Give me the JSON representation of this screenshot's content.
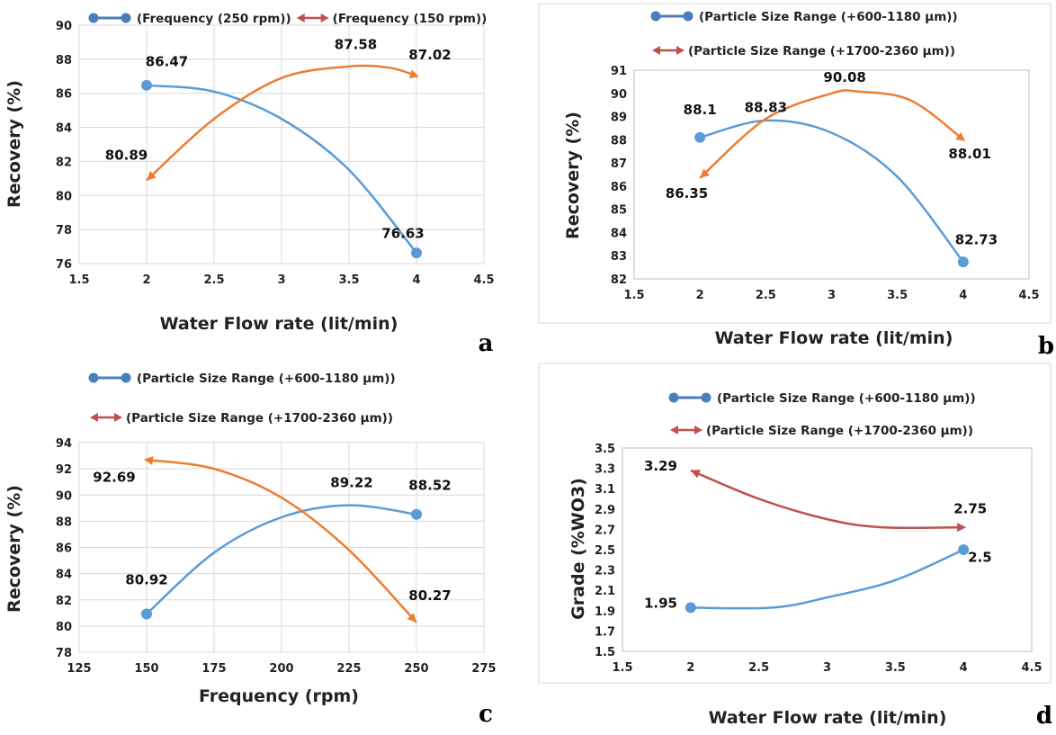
{
  "colors": {
    "blue": "#5b9bd5",
    "orange": "#ed7d31",
    "red_arrow": "#c0504d",
    "grid": "#d9d9d9",
    "frame": "#bfbfbf"
  },
  "chart_data": [
    {
      "panel": "a",
      "type": "line",
      "xlabel": "Water Flow rate (lit/min)",
      "ylabel": "Recovery (%)",
      "xlim": [
        1.5,
        4.5
      ],
      "xticks": [
        1.5,
        2,
        2.5,
        3,
        3.5,
        4,
        4.5
      ],
      "xtick_labels": [
        "1.5",
        "2",
        "2.5",
        "3",
        "3.5",
        "4",
        "4.5"
      ],
      "ylim": [
        76,
        90
      ],
      "yticks": [
        76,
        78,
        80,
        82,
        84,
        86,
        88,
        90
      ],
      "ytick_labels": [
        "76",
        "78",
        "80",
        "82",
        "84",
        "86",
        "88",
        "90"
      ],
      "grid": true,
      "legend": [
        "(Frequency (250 rpm))",
        "(Frequency (150 rpm))"
      ],
      "series": [
        {
          "name": "(Frequency (250 rpm))",
          "style": "blue-dot",
          "x": [
            2,
            4
          ],
          "y": [
            86.47,
            76.63
          ],
          "curve": [
            [
              2,
              86.47
            ],
            [
              2.5,
              86.1
            ],
            [
              3,
              84.5
            ],
            [
              3.5,
              81.5
            ],
            [
              4,
              76.63
            ]
          ],
          "labels": [
            "86.47",
            "76.63"
          ]
        },
        {
          "name": "(Frequency (150 rpm))",
          "style": "orange-arrow",
          "x": [
            2,
            4
          ],
          "y": [
            80.89,
            87.02
          ],
          "curve": [
            [
              2,
              80.89
            ],
            [
              2.5,
              84.5
            ],
            [
              3,
              86.9
            ],
            [
              3.5,
              87.58
            ],
            [
              3.8,
              87.5
            ],
            [
              4,
              87.02
            ]
          ],
          "labels": [
            "80.89",
            "87.02"
          ],
          "peak_label": "87.58"
        }
      ],
      "point_labels": [
        {
          "text": "86.47",
          "x": 2.15,
          "y": 87.6
        },
        {
          "text": "76.63",
          "x": 3.9,
          "y": 77.5
        },
        {
          "text": "80.89",
          "x": 1.85,
          "y": 82.1
        },
        {
          "text": "87.58",
          "x": 3.55,
          "y": 88.6
        },
        {
          "text": "87.02",
          "x": 4.1,
          "y": 88.0
        }
      ]
    },
    {
      "panel": "b",
      "type": "line",
      "xlabel": "Water Flow rate (lit/min)",
      "ylabel": "Recovery (%)",
      "xlim": [
        1.5,
        4.5
      ],
      "xticks": [
        1.5,
        2,
        2.5,
        3,
        3.5,
        4,
        4.5
      ],
      "xtick_labels": [
        "1.5",
        "2",
        "2.5",
        "3",
        "3.5",
        "4",
        "4.5"
      ],
      "ylim": [
        82,
        91
      ],
      "yticks": [
        82,
        83,
        84,
        85,
        86,
        87,
        88,
        89,
        90,
        91
      ],
      "ytick_labels": [
        "82",
        "83",
        "84",
        "85",
        "86",
        "87",
        "88",
        "89",
        "90",
        "91"
      ],
      "grid": false,
      "legend": [
        "(Particle Size Range (+600-1180 µm))",
        "(Particle Size Range (+1700-2360 µm))"
      ],
      "series": [
        {
          "name": "(Particle Size Range (+600-1180 µm))",
          "style": "blue-dot",
          "x": [
            2,
            4
          ],
          "y": [
            88.1,
            82.73
          ],
          "curve": [
            [
              2,
              88.1
            ],
            [
              2.5,
              88.83
            ],
            [
              3,
              88.3
            ],
            [
              3.5,
              86.4
            ],
            [
              4,
              82.73
            ]
          ],
          "labels": [
            "88.1",
            "82.73"
          ],
          "peak_label": "88.83"
        },
        {
          "name": "(Particle Size Range (+1700-2360 µm))",
          "style": "orange-arrow",
          "x": [
            2,
            4
          ],
          "y": [
            86.35,
            88.01
          ],
          "curve": [
            [
              2,
              86.35
            ],
            [
              2.5,
              88.9
            ],
            [
              3,
              90.0
            ],
            [
              3.2,
              90.08
            ],
            [
              3.6,
              89.7
            ],
            [
              4,
              88.01
            ]
          ],
          "labels": [
            "86.35",
            "88.01"
          ],
          "peak_label": "90.08"
        }
      ],
      "point_labels": [
        {
          "text": "88.1",
          "x": 2.0,
          "y": 89.1
        },
        {
          "text": "88.83",
          "x": 2.5,
          "y": 89.2
        },
        {
          "text": "90.08",
          "x": 3.1,
          "y": 90.5
        },
        {
          "text": "88.01",
          "x": 4.05,
          "y": 87.2
        },
        {
          "text": "86.35",
          "x": 1.9,
          "y": 85.5
        },
        {
          "text": "82.73",
          "x": 4.1,
          "y": 83.5
        }
      ]
    },
    {
      "panel": "c",
      "type": "line",
      "xlabel": "Frequency (rpm)",
      "ylabel": "Recovery (%)",
      "xlim": [
        125,
        275
      ],
      "xticks": [
        125,
        150,
        175,
        200,
        225,
        250,
        275
      ],
      "xtick_labels": [
        "125",
        "150",
        "175",
        "200",
        "225",
        "250",
        "275"
      ],
      "ylim": [
        78,
        94
      ],
      "yticks": [
        78,
        80,
        82,
        84,
        86,
        88,
        90,
        92,
        94
      ],
      "ytick_labels": [
        "78",
        "80",
        "82",
        "84",
        "86",
        "88",
        "90",
        "92",
        "94"
      ],
      "grid": true,
      "legend": [
        "(Particle Size Range (+600-1180 µm))",
        "(Particle Size Range (+1700-2360 µm))"
      ],
      "series": [
        {
          "name": "(Particle Size Range (+600-1180 µm))",
          "style": "blue-dot",
          "x": [
            150,
            250
          ],
          "y": [
            80.92,
            88.52
          ],
          "curve": [
            [
              150,
              80.92
            ],
            [
              175,
              85.6
            ],
            [
              200,
              88.3
            ],
            [
              225,
              89.22
            ],
            [
              250,
              88.52
            ]
          ],
          "labels": [
            "80.92",
            "88.52"
          ],
          "peak_label": "89.22"
        },
        {
          "name": "(Particle Size Range (+1700-2360 µm))",
          "style": "orange-arrow",
          "x": [
            250,
            150
          ],
          "y": [
            80.27,
            92.69
          ],
          "curve": [
            [
              250,
              80.27
            ],
            [
              225,
              85.8
            ],
            [
              200,
              89.8
            ],
            [
              175,
              92.0
            ],
            [
              150,
              92.69
            ]
          ],
          "labels": [
            "80.27",
            "92.69"
          ]
        }
      ],
      "point_labels": [
        {
          "text": "92.69",
          "x": 138,
          "y": 91.0
        },
        {
          "text": "89.22",
          "x": 226,
          "y": 90.6
        },
        {
          "text": "88.52",
          "x": 255,
          "y": 90.4
        },
        {
          "text": "80.92",
          "x": 150,
          "y": 83.2
        },
        {
          "text": "80.27",
          "x": 255,
          "y": 82.0
        }
      ]
    },
    {
      "panel": "d",
      "type": "line",
      "xlabel": "Water Flow rate (lit/min)",
      "ylabel": "Grade (%WO3)",
      "xlim": [
        1.5,
        4.5
      ],
      "xticks": [
        1.5,
        2,
        2.5,
        3,
        3.5,
        4,
        4.5
      ],
      "xtick_labels": [
        "1.5",
        "2",
        "2.5",
        "3",
        "3.5",
        "4",
        "4.5"
      ],
      "ylim": [
        1.5,
        3.5
      ],
      "yticks": [
        1.5,
        1.7,
        1.9,
        2.1,
        2.3,
        2.5,
        2.7,
        2.9,
        3.1,
        3.3,
        3.5
      ],
      "ytick_labels": [
        "1.5",
        "1.7",
        "1.9",
        "2.1",
        "2.3",
        "2.5",
        "2.7",
        "2.9",
        "3.1",
        "3.3",
        "3.5"
      ],
      "grid": false,
      "legend": [
        "(Particle Size Range (+600-1180 µm))",
        "(Particle Size Range (+1700-2360 µm))"
      ],
      "series": [
        {
          "name": "(Particle Size Range (+600-1180 µm))",
          "style": "blue-dot",
          "x": [
            2,
            4
          ],
          "y": [
            1.95,
            2.5
          ],
          "curve": [
            [
              2,
              1.93
            ],
            [
              2.6,
              1.93
            ],
            [
              3,
              2.03
            ],
            [
              3.5,
              2.2
            ],
            [
              4,
              2.5
            ]
          ],
          "labels": [
            "1.95",
            "2.5"
          ]
        },
        {
          "name": "(Particle Size Range (+1700-2360 µm))",
          "style": "red-arrow",
          "x": [
            2,
            4
          ],
          "y": [
            3.29,
            2.75
          ],
          "curve": [
            [
              2,
              3.28
            ],
            [
              2.5,
              3.0
            ],
            [
              3,
              2.8
            ],
            [
              3.4,
              2.72
            ],
            [
              4,
              2.72
            ]
          ],
          "labels": [
            "3.29",
            "2.75"
          ]
        }
      ],
      "point_labels": [
        {
          "text": "3.29",
          "x": 1.78,
          "y": 3.28
        },
        {
          "text": "2.75",
          "x": 4.05,
          "y": 2.86
        },
        {
          "text": "1.95",
          "x": 1.78,
          "y": 1.93
        },
        {
          "text": "2.5",
          "x": 4.12,
          "y": 2.38
        }
      ]
    }
  ],
  "panel_letters": [
    "a",
    "b",
    "c",
    "d"
  ]
}
